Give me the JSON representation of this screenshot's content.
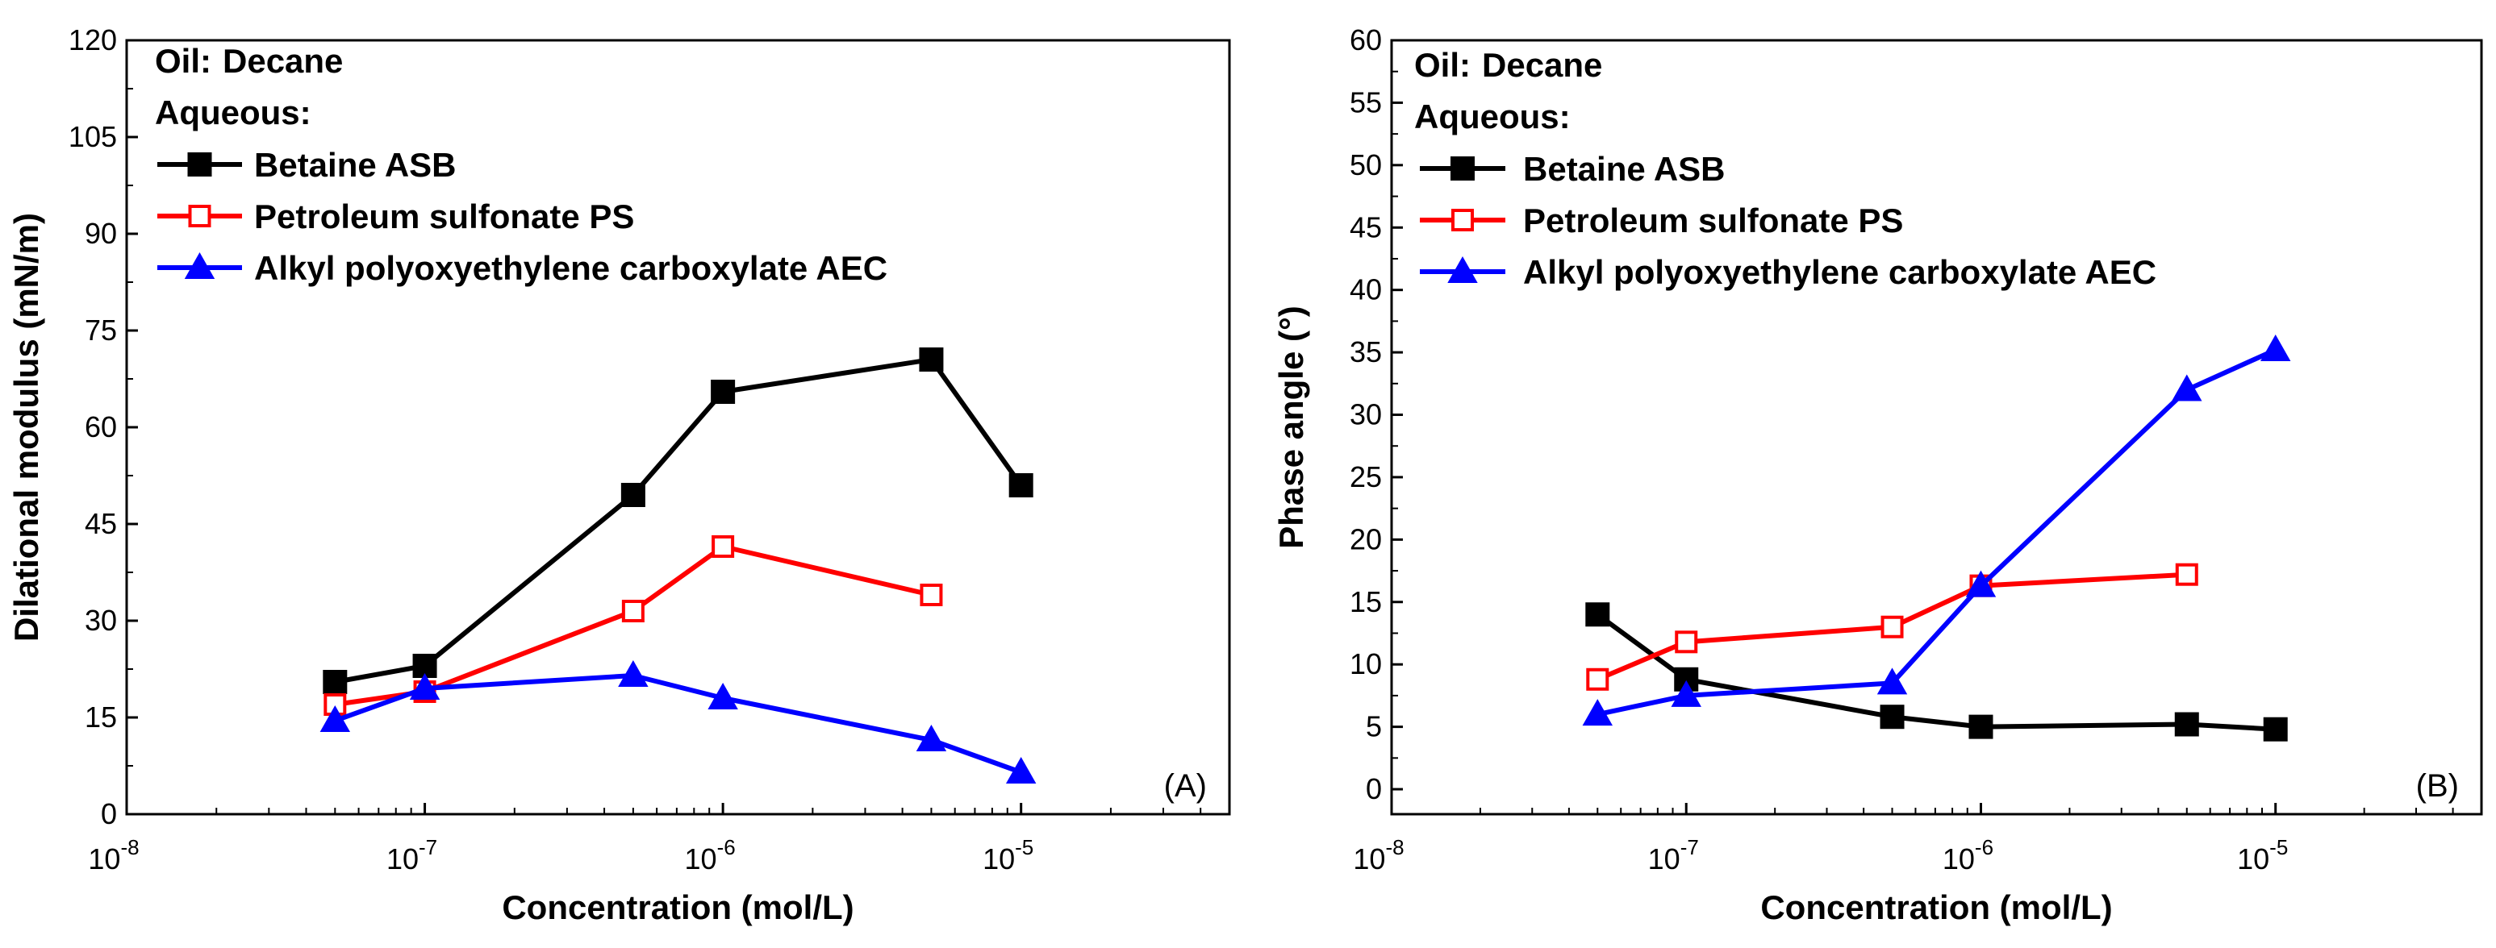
{
  "colors": {
    "ASB": "#000000",
    "PS": "#ff0000",
    "AEC": "#0000ff",
    "axis": "#000000",
    "background": "#ffffff"
  },
  "chart_data": [
    {
      "type": "line",
      "panel_label": "(A)",
      "xlabel": "Concentration (mol/L)",
      "ylabel": "Dilational modulus (mN/m)",
      "xscale": "log",
      "xlim": [
        1e-08,
        5e-05
      ],
      "ylim": [
        0,
        120
      ],
      "x_tick_labels": [
        {
          "base": "10",
          "exp": "-8",
          "value": 1e-08
        },
        {
          "base": "10",
          "exp": "-7",
          "value": 1e-07
        },
        {
          "base": "10",
          "exp": "-6",
          "value": 1e-06
        },
        {
          "base": "10",
          "exp": "-5",
          "value": 1e-05
        }
      ],
      "y_ticks": [
        0,
        15,
        30,
        45,
        60,
        75,
        90,
        105,
        120
      ],
      "y_tick_labels": [
        "0",
        "15",
        "30",
        "45",
        "60",
        "75",
        "90",
        "105",
        "120"
      ],
      "legend": {
        "placement": "top-left",
        "oil_label": "Oil:",
        "oil_value": "Decane",
        "aqueous_label": "Aqueous:",
        "entries": [
          "Betaine ASB",
          "Petroleum sulfonate PS",
          "Alkyl polyoxyethylene carboxylate AEC"
        ]
      },
      "series": [
        {
          "name": "Betaine ASB",
          "key": "ASB",
          "marker": "square-filled",
          "x": [
            5e-08,
            1e-07,
            5e-07,
            1e-06,
            5e-06,
            1e-05
          ],
          "values": [
            20.5,
            23,
            49.5,
            65.5,
            70.5,
            51
          ]
        },
        {
          "name": "Petroleum sulfonate PS",
          "key": "PS",
          "marker": "square-open",
          "x": [
            5e-08,
            1e-07,
            5e-07,
            1e-06,
            5e-06
          ],
          "values": [
            17,
            19,
            31.5,
            41.5,
            34
          ]
        },
        {
          "name": "Alkyl polyoxyethylene carboxylate AEC",
          "key": "AEC",
          "marker": "triangle-filled",
          "x": [
            5e-08,
            1e-07,
            5e-07,
            1e-06,
            5e-06,
            1e-05
          ],
          "values": [
            14.5,
            19.5,
            21.5,
            18,
            11.5,
            6.5
          ]
        }
      ]
    },
    {
      "type": "line",
      "panel_label": "(B)",
      "xlabel": "Concentration (mol/L)",
      "ylabel": "Phase angle (°)",
      "xscale": "log",
      "xlim": [
        1e-08,
        5e-05
      ],
      "ylim": [
        -2,
        60
      ],
      "x_tick_labels": [
        {
          "base": "10",
          "exp": "-8",
          "value": 1e-08
        },
        {
          "base": "10",
          "exp": "-7",
          "value": 1e-07
        },
        {
          "base": "10",
          "exp": "-6",
          "value": 1e-06
        },
        {
          "base": "10",
          "exp": "-5",
          "value": 1e-05
        }
      ],
      "y_ticks": [
        0,
        5,
        10,
        15,
        20,
        25,
        30,
        35,
        40,
        45,
        50,
        55,
        60
      ],
      "y_tick_labels": [
        "0",
        "5",
        "10",
        "15",
        "20",
        "25",
        "30",
        "35",
        "40",
        "45",
        "50",
        "55",
        "60"
      ],
      "legend": {
        "placement": "top-left",
        "oil_label": "Oil:",
        "oil_value": "Decane",
        "aqueous_label": "Aqueous:",
        "entries": [
          "Betaine ASB",
          "Petroleum sulfonate PS",
          "Alkyl polyoxyethylene carboxylate AEC"
        ]
      },
      "series": [
        {
          "name": "Betaine ASB",
          "key": "ASB",
          "marker": "square-filled",
          "x": [
            5e-08,
            1e-07,
            5e-07,
            1e-06,
            5e-06,
            1e-05
          ],
          "values": [
            14,
            8.8,
            5.8,
            5,
            5.2,
            4.8
          ]
        },
        {
          "name": "Petroleum sulfonate PS",
          "key": "PS",
          "marker": "square-open",
          "x": [
            5e-08,
            1e-07,
            5e-07,
            1e-06,
            5e-06
          ],
          "values": [
            8.8,
            11.8,
            13,
            16.3,
            17.2
          ]
        },
        {
          "name": "Alkyl polyoxyethylene carboxylate AEC",
          "key": "AEC",
          "marker": "triangle-filled",
          "x": [
            5e-08,
            1e-07,
            5e-07,
            1e-06,
            5e-06,
            1e-05
          ],
          "values": [
            6,
            7.5,
            8.5,
            16.3,
            32,
            35.2
          ]
        }
      ]
    }
  ]
}
